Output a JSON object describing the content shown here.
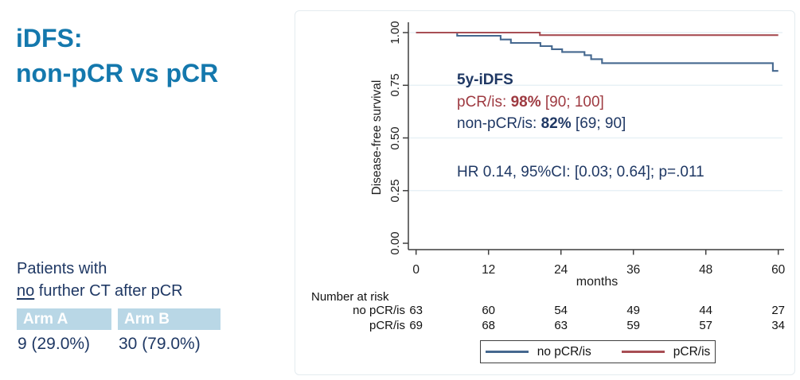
{
  "slide": {
    "title_lines": [
      "iDFS:",
      "non-pCR vs pCR"
    ],
    "title_color": "#1478ad",
    "note": {
      "line1": "Patients with",
      "line2_underlined": "no",
      "line2_rest": " further CT after pCR"
    },
    "arm_table": {
      "headers": [
        "Arm A",
        "Arm B"
      ],
      "values": [
        "9 (29.0%)",
        "30 (79.0%)"
      ],
      "header_bg": "#b9d7e6"
    }
  },
  "chart_data": {
    "type": "line",
    "subtype": "kaplan-meier-step",
    "xlabel": "months",
    "ylabel": "Disease-free survival",
    "xlim": [
      0,
      60
    ],
    "ylim": [
      0.0,
      1.0
    ],
    "x_ticks": [
      0,
      12,
      24,
      36,
      48,
      60
    ],
    "y_ticks": [
      {
        "label": "1.00",
        "value": 1.0
      },
      {
        "label": "0.75",
        "value": 0.75
      },
      {
        "label": "0.50",
        "value": 0.5
      },
      {
        "label": "0.25",
        "value": 0.25
      },
      {
        "label": "0.00",
        "value": 0.0
      }
    ],
    "grid": true,
    "grid_color": "#e8f1f6",
    "axis_color": "#3f3f3f",
    "series": [
      {
        "name": "no pCR/is",
        "color": "#45688f",
        "steps": [
          [
            0,
            1.0
          ],
          [
            6.8,
            0.985
          ],
          [
            14,
            0.967
          ],
          [
            15.7,
            0.951
          ],
          [
            20.6,
            0.936
          ],
          [
            22.5,
            0.921
          ],
          [
            24.2,
            0.908
          ],
          [
            27.9,
            0.893
          ],
          [
            29,
            0.874
          ],
          [
            30.8,
            0.855
          ],
          [
            59.1,
            0.818
          ],
          [
            60,
            0.818
          ]
        ]
      },
      {
        "name": "pCR/is",
        "color": "#a84e54",
        "steps": [
          [
            0,
            1.0
          ],
          [
            20.5,
            0.988
          ],
          [
            60,
            0.988
          ]
        ]
      }
    ],
    "annotations": {
      "heading": "5y-iDFS",
      "pcr_prefix": "pCR/is: ",
      "pcr_value": "98%",
      "pcr_ci": " [90; 100]",
      "pcr_color": "#9e3a41",
      "nonpcr_prefix": "non-pCR/is: ",
      "nonpcr_value": "82%",
      "nonpcr_ci": " [69; 90]",
      "nonpcr_color": "#1f3864",
      "hr_line": "HR 0.14, 95%CI: [0.03; 0.64]; p=.011"
    },
    "legend_position": "bottom"
  },
  "risk_table": {
    "title": "Number at risk",
    "rows": [
      {
        "label": "no pCR/is",
        "values": [
          63,
          60,
          54,
          49,
          44,
          27
        ]
      },
      {
        "label": "pCR/is",
        "values": [
          69,
          68,
          63,
          59,
          57,
          34
        ]
      }
    ]
  },
  "legend": {
    "entries": [
      {
        "label": "no pCR/is",
        "color": "#45688f"
      },
      {
        "label": "pCR/is",
        "color": "#a84e54"
      }
    ]
  }
}
